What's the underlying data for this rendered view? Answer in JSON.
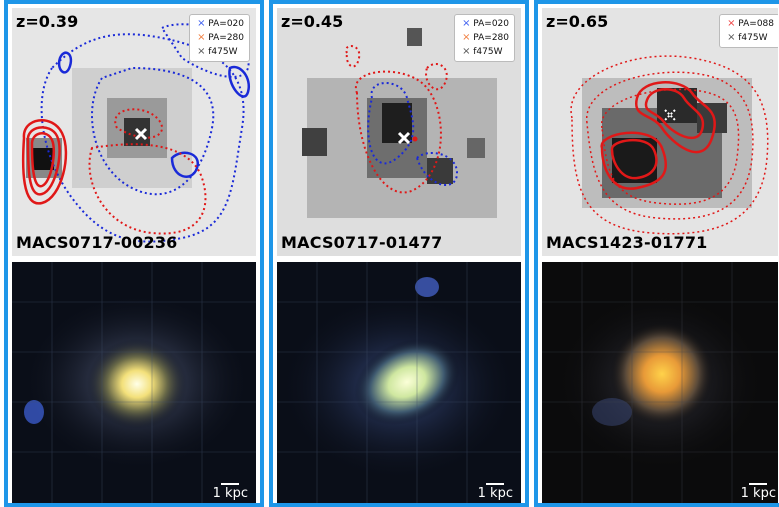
{
  "panels": [
    {
      "redshift": "z=0.39",
      "object": "MACS0717-00236",
      "legend": [
        {
          "marker": "×",
          "color": "#3a5cf0",
          "label": "PA=020"
        },
        {
          "marker": "×",
          "color": "#f07a3a",
          "label": "PA=280"
        },
        {
          "marker": "×",
          "color": "#555555",
          "label": "f475W"
        }
      ],
      "scale": "1 kpc"
    },
    {
      "redshift": "z=0.45",
      "object": "MACS0717-01477",
      "legend": [
        {
          "marker": "×",
          "color": "#3a5cf0",
          "label": "PA=020"
        },
        {
          "marker": "×",
          "color": "#f07a3a",
          "label": "PA=280"
        },
        {
          "marker": "×",
          "color": "#555555",
          "label": "f475W"
        }
      ],
      "scale": "1 kpc"
    },
    {
      "redshift": "z=0.65",
      "object": "MACS1423-01771",
      "legend": [
        {
          "marker": "×",
          "color": "#f04040",
          "label": "PA=088"
        },
        {
          "marker": "×",
          "color": "#555555",
          "label": "f475W"
        }
      ],
      "scale": "1 kpc"
    }
  ],
  "colors": {
    "frame": "#1e96e8",
    "contour_blue": "#1a2ad8",
    "contour_red": "#e01818",
    "marker_white": "#ffffff"
  }
}
